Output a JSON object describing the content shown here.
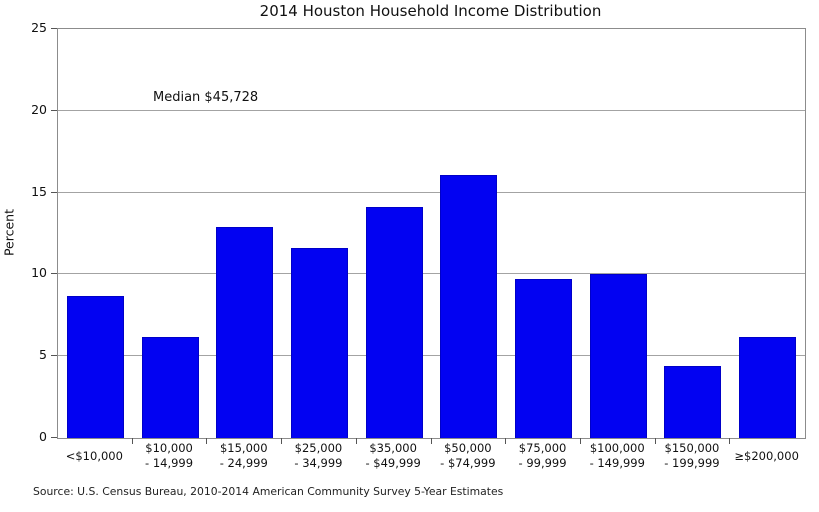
{
  "title": "2014 Houston Household Income Distribution",
  "annotation": "Median $45,728",
  "source_note": "Source: U.S. Census Bureau, 2010-2014 American Community Survey 5-Year Estimates",
  "chart_data": {
    "type": "bar",
    "title": "2014 Houston Household Income Distribution",
    "xlabel": "",
    "ylabel": "Percent",
    "ylim": [
      0,
      25
    ],
    "yticks": [
      0,
      5,
      10,
      15,
      20,
      25
    ],
    "grid": "horizontal-gray",
    "legend": "none",
    "bar_color": "#0202f2",
    "categories": [
      "<$10,000",
      "$10,000 - 14,999",
      "$15,000 - 24,999",
      "$25,000 - 34,999",
      "$35,000 - $49,999",
      "$50,000 - $74,999",
      "$75,000 - 99,999",
      "$100,000 - 149,999",
      "$150,000 - 199,999",
      "≥$200,000"
    ],
    "category_label_lines": [
      [
        "<$10,000"
      ],
      [
        "$10,000",
        "- 14,999"
      ],
      [
        "$15,000",
        "- 24,999"
      ],
      [
        "$25,000",
        "- 34,999"
      ],
      [
        "$35,000",
        "- $49,999"
      ],
      [
        "$50,000",
        "- $74,999"
      ],
      [
        "$75,000",
        "- 99,999"
      ],
      [
        "$100,000",
        "- 149,999"
      ],
      [
        "$150,000",
        "- 199,999"
      ],
      [
        "≥$200,000"
      ]
    ],
    "values": [
      8.7,
      6.2,
      12.9,
      11.6,
      14.1,
      16.1,
      9.7,
      10.0,
      4.4,
      6.2
    ],
    "annotation": "Median $45,728",
    "source_note": "Source: U.S. Census Bureau, 2010-2014 American Community Survey 5-Year Estimates"
  }
}
